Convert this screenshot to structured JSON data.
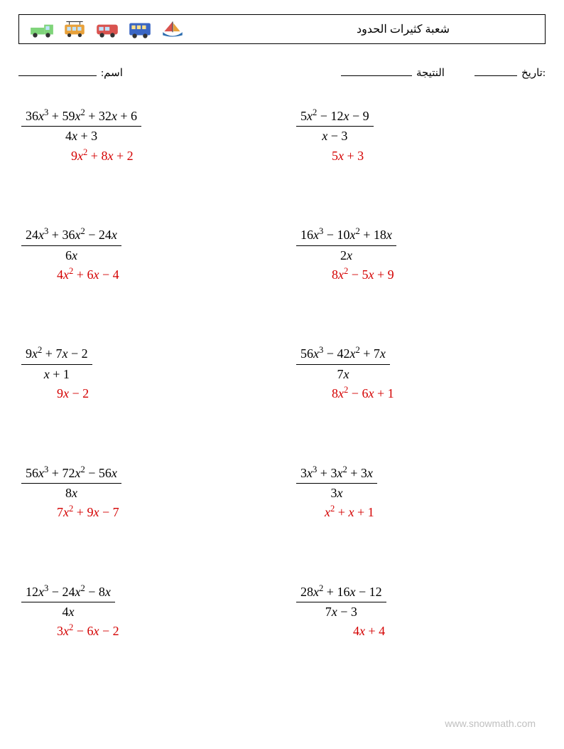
{
  "header": {
    "title": "شعبة كثيرات الحدود"
  },
  "info": {
    "name_label": "اسم:",
    "score_label": "النتيجة",
    "date_label": ":تاريخ",
    "name_underline_width": 110,
    "score_underline_width": 100,
    "date_underline_width": 60
  },
  "icons": [
    {
      "name": "truck",
      "body": "#7fd47a",
      "accent": "#2f6fb0"
    },
    {
      "name": "tram",
      "body": "#e8a13a",
      "accent": "#2f6fb0"
    },
    {
      "name": "van",
      "body": "#d9534f",
      "accent": "#2f6fb0"
    },
    {
      "name": "bus",
      "body": "#3a66c4",
      "accent": "#e8a13a"
    },
    {
      "name": "sailboat",
      "body": "#2f6fb0",
      "accent": "#d9534f"
    }
  ],
  "colors": {
    "text": "#000000",
    "answer": "#d40000",
    "footer": "#c0c0c0",
    "background": "#ffffff"
  },
  "problems": [
    {
      "numerator": "36x^3 + 59x^2 + 32x + 6",
      "denominator": "4x + 3",
      "answer": "9x^2 + 8x + 2",
      "answer_indent": 70
    },
    {
      "numerator": "5x^2 − 12x − 9",
      "denominator": "x − 3",
      "answer": "5x + 3",
      "answer_indent": 50
    },
    {
      "numerator": "24x^3 + 36x^2 − 24x",
      "denominator": "6x",
      "answer": "4x^2 + 6x − 4",
      "answer_indent": 50
    },
    {
      "numerator": "16x^3 − 10x^2 + 18x",
      "denominator": "2x",
      "answer": "8x^2 − 5x + 9",
      "answer_indent": 50
    },
    {
      "numerator": "9x^2 + 7x − 2",
      "denominator": "x + 1",
      "answer": "9x − 2",
      "answer_indent": 50
    },
    {
      "numerator": "56x^3 − 42x^2 + 7x",
      "denominator": "7x",
      "answer": "8x^2 − 6x + 1",
      "answer_indent": 50
    },
    {
      "numerator": "56x^3 + 72x^2 − 56x",
      "denominator": "8x",
      "answer": "7x^2 + 9x − 7",
      "answer_indent": 50
    },
    {
      "numerator": "3x^3 + 3x^2 + 3x",
      "denominator": "3x",
      "answer": "x^2 + x + 1",
      "answer_indent": 40
    },
    {
      "numerator": "12x^3 − 24x^2 − 8x",
      "denominator": "4x",
      "answer": "3x^2 − 6x − 2",
      "answer_indent": 50
    },
    {
      "numerator": "28x^2 + 16x − 12",
      "denominator": "7x − 3",
      "answer": "4x + 4",
      "answer_indent": 80
    }
  ],
  "footer": {
    "text": "www.snowmath.com"
  }
}
